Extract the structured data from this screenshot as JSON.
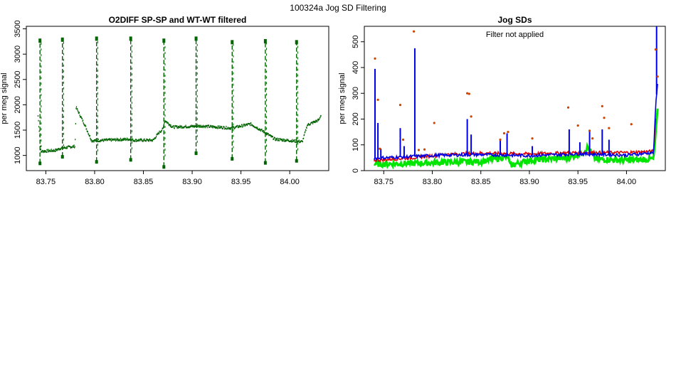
{
  "page": {
    "title": "100324a   Jog SD Filtering"
  },
  "chart_data": [
    {
      "type": "scatter",
      "title": "O2DIFF SP-SP and WT-WT filtered",
      "xlabel": "",
      "ylabel": "per meg signal",
      "xlim": [
        83.73,
        84.04
      ],
      "ylim": [
        700,
        3550
      ],
      "x_ticks": [
        "83.75",
        "83.80",
        "83.85",
        "83.90",
        "83.95",
        "84.00"
      ],
      "y_ticks": [
        "1000",
        "1500",
        "2000",
        "2500",
        "3000",
        "3500"
      ],
      "grid": false,
      "series": [
        {
          "color": "#006400",
          "baseline": [
            [
              83.742,
              1780
            ],
            [
              83.745,
              1080
            ],
            [
              83.76,
              1100
            ],
            [
              83.765,
              1140
            ],
            [
              83.78,
              1180
            ],
            [
              83.781,
              1950
            ],
            [
              83.79,
              1600
            ],
            [
              83.797,
              1290
            ],
            [
              83.81,
              1300
            ],
            [
              83.835,
              1320
            ],
            [
              83.84,
              1300
            ],
            [
              83.86,
              1300
            ],
            [
              83.866,
              1450
            ],
            [
              83.87,
              1520
            ],
            [
              83.872,
              1690
            ],
            [
              83.88,
              1560
            ],
            [
              83.91,
              1580
            ],
            [
              83.94,
              1540
            ],
            [
              83.945,
              1560
            ],
            [
              83.96,
              1620
            ],
            [
              83.975,
              1450
            ],
            [
              83.985,
              1320
            ],
            [
              84.013,
              1270
            ],
            [
              84.018,
              1600
            ],
            [
              84.03,
              1700
            ],
            [
              84.032,
              1800
            ]
          ],
          "spikes": [
            {
              "x": 83.744,
              "high": 3280,
              "low": 850
            },
            {
              "x": 83.767,
              "high": 3300,
              "low": 980
            },
            {
              "x": 83.802,
              "high": 3320,
              "low": 880
            },
            {
              "x": 83.837,
              "high": 3320,
              "low": 920
            },
            {
              "x": 83.871,
              "high": 3280,
              "low": 780
            },
            {
              "x": 83.904,
              "high": 3320,
              "low": 1050
            },
            {
              "x": 83.941,
              "high": 3250,
              "low": 940
            },
            {
              "x": 83.975,
              "high": 3270,
              "low": 860
            },
            {
              "x": 84.007,
              "high": 3250,
              "low": 900
            }
          ]
        }
      ]
    },
    {
      "type": "line",
      "title": "Jog SDs",
      "annotation": "Filter not applied",
      "xlabel": "",
      "ylabel": "per meg signal",
      "xlim": [
        83.73,
        84.04
      ],
      "ylim": [
        0,
        560
      ],
      "x_ticks": [
        "83.75",
        "83.80",
        "83.85",
        "83.90",
        "83.95",
        "84.00"
      ],
      "y_ticks": [
        "0",
        "100",
        "200",
        "300",
        "400",
        "500"
      ],
      "grid": false,
      "series": [
        {
          "color": "#00e600",
          "baseline": [
            [
              83.74,
              25
            ],
            [
              83.78,
              28
            ],
            [
              83.81,
              32
            ],
            [
              83.85,
              35
            ],
            [
              83.878,
              55
            ],
            [
              83.88,
              20
            ],
            [
              83.9,
              40
            ],
            [
              83.94,
              50
            ],
            [
              83.955,
              70
            ],
            [
              83.96,
              90
            ],
            [
              83.968,
              45
            ],
            [
              84.0,
              40
            ],
            [
              84.028,
              45
            ],
            [
              84.03,
              140
            ],
            [
              84.032,
              230
            ]
          ]
        },
        {
          "color": "#e00000",
          "baseline": [
            [
              83.74,
              40
            ],
            [
              83.78,
              50
            ],
            [
              83.81,
              62
            ],
            [
              83.85,
              68
            ],
            [
              83.9,
              65
            ],
            [
              83.95,
              70
            ],
            [
              84.0,
              70
            ],
            [
              84.028,
              75
            ],
            [
              84.03,
              200
            ]
          ]
        },
        {
          "color": "#0000e6",
          "baseline": [
            [
              83.74,
              48
            ],
            [
              83.78,
              55
            ],
            [
              83.81,
              60
            ],
            [
              83.85,
              62
            ],
            [
              83.9,
              58
            ],
            [
              83.95,
              65
            ],
            [
              84.0,
              60
            ],
            [
              84.028,
              70
            ],
            [
              84.03,
              250
            ],
            [
              84.032,
              340
            ]
          ],
          "spikes": [
            {
              "x": 83.741,
              "y": 395
            },
            {
              "x": 83.744,
              "y": 185
            },
            {
              "x": 83.747,
              "y": 85
            },
            {
              "x": 83.767,
              "y": 165
            },
            {
              "x": 83.771,
              "y": 95
            },
            {
              "x": 83.782,
              "y": 475
            },
            {
              "x": 83.836,
              "y": 200
            },
            {
              "x": 83.84,
              "y": 140
            },
            {
              "x": 83.87,
              "y": 120
            },
            {
              "x": 83.877,
              "y": 145
            },
            {
              "x": 83.903,
              "y": 95
            },
            {
              "x": 83.941,
              "y": 160
            },
            {
              "x": 83.952,
              "y": 110
            },
            {
              "x": 83.962,
              "y": 155
            },
            {
              "x": 83.975,
              "y": 160
            },
            {
              "x": 83.982,
              "y": 120
            },
            {
              "x": 84.031,
              "y": 565
            }
          ]
        },
        {
          "color": "#cc4400",
          "type": "scatter",
          "points": [
            [
              83.741,
              435
            ],
            [
              83.744,
              275
            ],
            [
              83.746,
              85
            ],
            [
              83.767,
              255
            ],
            [
              83.77,
              120
            ],
            [
              83.781,
              540
            ],
            [
              83.786,
              80
            ],
            [
              83.792,
              82
            ],
            [
              83.802,
              185
            ],
            [
              83.836,
              300
            ],
            [
              83.838,
              298
            ],
            [
              83.84,
              210
            ],
            [
              83.87,
              120
            ],
            [
              83.874,
              145
            ],
            [
              83.878,
              150
            ],
            [
              83.903,
              125
            ],
            [
              83.94,
              245
            ],
            [
              83.95,
              175
            ],
            [
              83.962,
              155
            ],
            [
              83.965,
              125
            ],
            [
              83.975,
              250
            ],
            [
              83.977,
              205
            ],
            [
              83.982,
              165
            ],
            [
              84.005,
              180
            ],
            [
              84.03,
              470
            ],
            [
              84.032,
              365
            ]
          ]
        }
      ]
    }
  ]
}
